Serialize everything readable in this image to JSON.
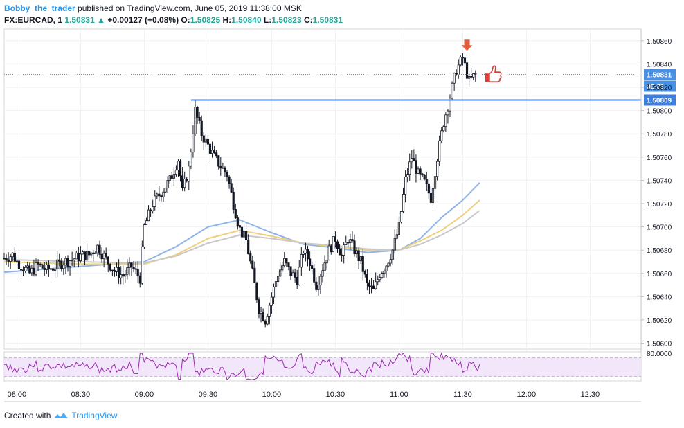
{
  "header": {
    "author": "Bobby_the_trader",
    "published_text": "published on TradingView.com, June 05, 2019 11:38:00 MSK"
  },
  "ohlc": {
    "symbol": "FX:EURCAD, 1",
    "last": "1.50831",
    "change_arrow": "up-triangle-icon",
    "change": "+0.00127 (+0.08%)",
    "o_label": "O:",
    "o": "1.50825",
    "h_label": "H:",
    "h": "1.50840",
    "l_label": "L:",
    "l": "1.50823",
    "c_label": "C:",
    "c": "1.50831"
  },
  "footer": {
    "created_with": "Created with",
    "brand": "TradingView"
  },
  "chart_data": {
    "type": "candlestick",
    "y_ticks": [
      "1.50600",
      "1.50620",
      "1.50640",
      "1.50660",
      "1.50680",
      "1.50700",
      "1.50720",
      "1.50740",
      "1.50760",
      "1.50780",
      "1.50800",
      "1.50820",
      "1.50840",
      "1.50860"
    ],
    "ylim": [
      1.50595,
      1.5087
    ],
    "x_ticks": [
      "08:00",
      "08:30",
      "09:00",
      "09:30",
      "10:00",
      "10:30",
      "11:00",
      "11:30",
      "12:00",
      "12:30"
    ],
    "price_labels": {
      "last": "1.50831",
      "countdown": "00:01",
      "hline": "1.50809",
      "partial_tick": "1"
    },
    "horizontal_line": {
      "value": 1.50809,
      "from": "09:22",
      "color": "#3d7ede"
    },
    "rsi_panel": {
      "label": "80.0000",
      "upper": 80,
      "lower": 20
    },
    "candles_close_path": [
      [
        "07:54",
        1.50673
      ],
      [
        "07:58",
        1.50676
      ],
      [
        "08:00",
        1.5067
      ],
      [
        "08:03",
        1.50665
      ],
      [
        "08:06",
        1.5066
      ],
      [
        "08:10",
        1.50667
      ],
      [
        "08:14",
        1.50663
      ],
      [
        "08:18",
        1.50666
      ],
      [
        "08:22",
        1.5067
      ],
      [
        "08:26",
        1.50672
      ],
      [
        "08:30",
        1.50675
      ],
      [
        "08:34",
        1.50676
      ],
      [
        "08:38",
        1.50683
      ],
      [
        "08:42",
        1.50672
      ],
      [
        "08:46",
        1.50662
      ],
      [
        "08:50",
        1.50658
      ],
      [
        "08:54",
        1.50666
      ],
      [
        "08:58",
        1.50656
      ],
      [
        "09:00",
        1.507
      ],
      [
        "09:04",
        1.5072
      ],
      [
        "09:08",
        1.5073
      ],
      [
        "09:12",
        1.5074
      ],
      [
        "09:16",
        1.50758
      ],
      [
        "09:18",
        1.5073
      ],
      [
        "09:21",
        1.5075
      ],
      [
        "09:24",
        1.508
      ],
      [
        "09:27",
        1.5078
      ],
      [
        "09:30",
        1.5077
      ],
      [
        "09:33",
        1.5076
      ],
      [
        "09:36",
        1.50752
      ],
      [
        "09:39",
        1.50745
      ],
      [
        "09:42",
        1.5072
      ],
      [
        "09:45",
        1.50698
      ],
      [
        "09:48",
        1.50688
      ],
      [
        "09:51",
        1.5066
      ],
      [
        "09:54",
        1.5063
      ],
      [
        "09:57",
        1.5062
      ],
      [
        "10:00",
        1.5064
      ],
      [
        "10:03",
        1.5066
      ],
      [
        "10:06",
        1.5067
      ],
      [
        "10:09",
        1.5066
      ],
      [
        "10:12",
        1.50655
      ],
      [
        "10:15",
        1.5068
      ],
      [
        "10:18",
        1.5067
      ],
      [
        "10:21",
        1.5065
      ],
      [
        "10:24",
        1.50665
      ],
      [
        "10:27",
        1.5068
      ],
      [
        "10:30",
        1.5069
      ],
      [
        "10:33",
        1.50675
      ],
      [
        "10:36",
        1.5069
      ],
      [
        "10:39",
        1.5068
      ],
      [
        "10:42",
        1.5067
      ],
      [
        "10:45",
        1.5065
      ],
      [
        "10:48",
        1.50645
      ],
      [
        "10:51",
        1.5066
      ],
      [
        "10:54",
        1.50668
      ],
      [
        "10:57",
        1.5068
      ],
      [
        "11:00",
        1.507
      ],
      [
        "11:03",
        1.5074
      ],
      [
        "11:06",
        1.5076
      ],
      [
        "11:09",
        1.50745
      ],
      [
        "11:12",
        1.50738
      ],
      [
        "11:15",
        1.50725
      ],
      [
        "11:18",
        1.5076
      ],
      [
        "11:21",
        1.5079
      ],
      [
        "11:24",
        1.50812
      ],
      [
        "11:27",
        1.50835
      ],
      [
        "11:30",
        1.50845
      ],
      [
        "11:33",
        1.50825
      ],
      [
        "11:36",
        1.50831
      ]
    ],
    "series": [
      {
        "name": "",
        "color": "#8fb4ea",
        "points": [
          [
            "07:54",
            1.50661
          ],
          [
            "08:30",
            1.50666
          ],
          [
            "09:00",
            1.5067
          ],
          [
            "09:15",
            1.50683
          ],
          [
            "09:30",
            1.507
          ],
          [
            "09:45",
            1.50706
          ],
          [
            "10:00",
            1.50695
          ],
          [
            "10:15",
            1.50685
          ],
          [
            "10:30",
            1.50682
          ],
          [
            "10:45",
            1.50678
          ],
          [
            "11:00",
            1.5068
          ],
          [
            "11:10",
            1.5069
          ],
          [
            "11:20",
            1.50708
          ],
          [
            "11:30",
            1.50723
          ],
          [
            "11:38",
            1.50738
          ]
        ]
      },
      {
        "name": "",
        "color": "#f0cf7c",
        "points": [
          [
            "07:54",
            1.5067
          ],
          [
            "08:30",
            1.50668
          ],
          [
            "09:00",
            1.50668
          ],
          [
            "09:15",
            1.50676
          ],
          [
            "09:30",
            1.5069
          ],
          [
            "09:45",
            1.50697
          ],
          [
            "10:00",
            1.50692
          ],
          [
            "10:15",
            1.50686
          ],
          [
            "10:30",
            1.50683
          ],
          [
            "10:45",
            1.5068
          ],
          [
            "11:00",
            1.5068
          ],
          [
            "11:10",
            1.50688
          ],
          [
            "11:20",
            1.50697
          ],
          [
            "11:30",
            1.5071
          ],
          [
            "11:38",
            1.50723
          ]
        ]
      },
      {
        "name": "",
        "color": "#c8c8c8",
        "points": [
          [
            "07:54",
            1.50672
          ],
          [
            "08:30",
            1.5067
          ],
          [
            "09:00",
            1.50669
          ],
          [
            "09:15",
            1.50675
          ],
          [
            "09:30",
            1.50686
          ],
          [
            "09:45",
            1.50693
          ],
          [
            "10:00",
            1.5069
          ],
          [
            "10:15",
            1.50686
          ],
          [
            "10:30",
            1.50684
          ],
          [
            "10:45",
            1.50681
          ],
          [
            "11:00",
            1.5068
          ],
          [
            "11:10",
            1.50685
          ],
          [
            "11:20",
            1.50693
          ],
          [
            "11:30",
            1.50703
          ],
          [
            "11:38",
            1.50714
          ]
        ]
      }
    ],
    "markers": [
      {
        "type": "arrow-down",
        "at": "11:32",
        "value": 1.50855,
        "color": "#e25b3a"
      },
      {
        "type": "thumb",
        "at": "11:38",
        "value": 1.5083,
        "color": "#e53935"
      }
    ],
    "grid": true
  }
}
